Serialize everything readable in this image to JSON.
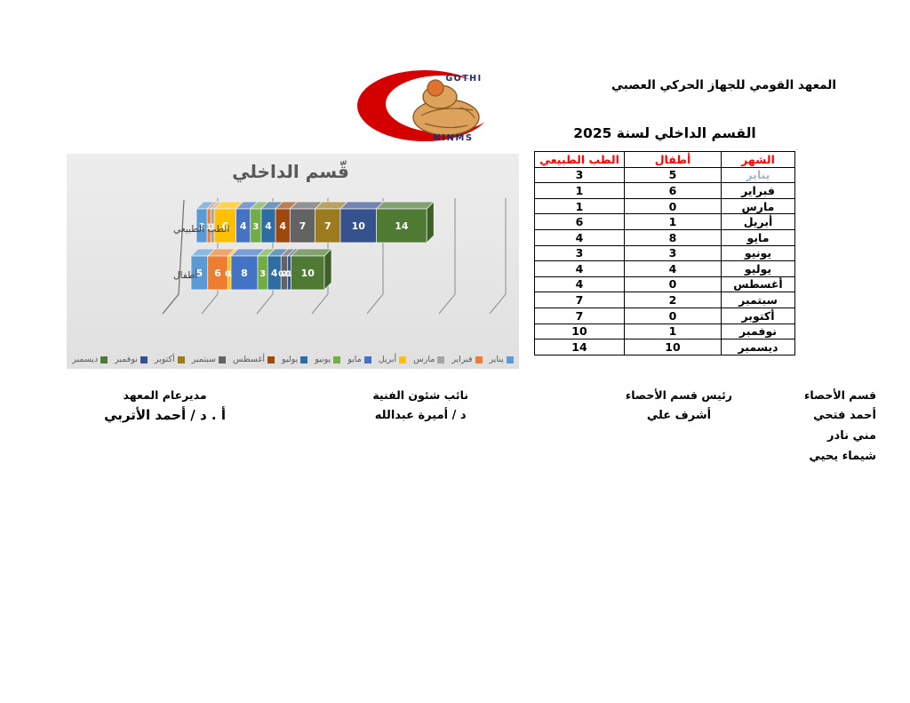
{
  "header": {
    "institute_title": "المعهد القومي للجهاز الحركي العصبي",
    "report_title": "القسم الداخلي لسنة 2025"
  },
  "logo": {
    "top_text": "GOTHI",
    "bottom_text": "NINMS",
    "crescent_color": "#D40000",
    "figure_color": "#DDA35C",
    "text_color": "#1E2D6B"
  },
  "table": {
    "columns": [
      "الشهر",
      "أطفال",
      "الطب الطبيعي"
    ],
    "header_text_color": "#FF0000",
    "rows": [
      {
        "month": "يناير",
        "children": 5,
        "physio": 3,
        "muted": true
      },
      {
        "month": "فبراير",
        "children": 6,
        "physio": 1,
        "muted": false
      },
      {
        "month": "مارس",
        "children": 0,
        "physio": 1,
        "muted": false
      },
      {
        "month": "أبريل",
        "children": 1,
        "physio": 6,
        "muted": false
      },
      {
        "month": "مايو",
        "children": 8,
        "physio": 4,
        "muted": false
      },
      {
        "month": "يونيو",
        "children": 3,
        "physio": 3,
        "muted": false
      },
      {
        "month": "يوليو",
        "children": 4,
        "physio": 4,
        "muted": false
      },
      {
        "month": "أغسطس",
        "children": 0,
        "physio": 4,
        "muted": false
      },
      {
        "month": "سبتمبر",
        "children": 2,
        "physio": 7,
        "muted": false
      },
      {
        "month": "أكتوبر",
        "children": 0,
        "physio": 7,
        "muted": false
      },
      {
        "month": "نوفمبر",
        "children": 1,
        "physio": 10,
        "muted": false
      },
      {
        "month": "ديسمبر",
        "children": 10,
        "physio": 14,
        "muted": false
      }
    ]
  },
  "chart_data": {
    "type": "bar",
    "subtype": "3d-stacked-horizontal",
    "title": "قّسم الداخلي",
    "title_color": "#595959",
    "categories": [
      "الطب الطبيعي",
      "أطفال"
    ],
    "values_order": "values = [الطب الطبيعي, أطفال]",
    "series": [
      {
        "name": "يناير",
        "color": "#5B9BD5",
        "values": [
          3,
          5
        ]
      },
      {
        "name": "فبراير",
        "color": "#ED7D31",
        "values": [
          1,
          6
        ]
      },
      {
        "name": "مارس",
        "color": "#A5A5A5",
        "values": [
          1,
          0
        ]
      },
      {
        "name": "أبريل",
        "color": "#FFC000",
        "values": [
          6,
          1
        ]
      },
      {
        "name": "مايو",
        "color": "#4472C4",
        "values": [
          4,
          8
        ]
      },
      {
        "name": "يونيو",
        "color": "#70AD47",
        "values": [
          3,
          3
        ]
      },
      {
        "name": "يوليو",
        "color": "#2E6DA4",
        "values": [
          4,
          4
        ]
      },
      {
        "name": "أغسطس",
        "color": "#9E480E",
        "values": [
          4,
          0
        ]
      },
      {
        "name": "سبتمبر",
        "color": "#636363",
        "values": [
          7,
          2
        ]
      },
      {
        "name": "أكتوبر",
        "color": "#9C7B1F",
        "values": [
          7,
          0
        ]
      },
      {
        "name": "نوفمبر",
        "color": "#35518E",
        "values": [
          10,
          1
        ]
      },
      {
        "name": "ديسمبر",
        "color": "#4E7A33",
        "values": [
          14,
          10
        ]
      }
    ],
    "legend_position": "bottom",
    "gridlines": true,
    "data_labels": "white bold numbers on segments"
  },
  "signatures": [
    {
      "title": "قسم الأحصاء",
      "names": [
        "أحمد فتحي",
        "مني نادر",
        "شيماء يحيي"
      ]
    },
    {
      "title": "رئيس قسم الأحصاء",
      "names": [
        "أشرف علي"
      ]
    },
    {
      "title": "نائب شئون الفنية",
      "names": [
        "د / أميرة عبدالله"
      ]
    },
    {
      "title": "مديرعام المعهد",
      "names": [
        "أ . د / أحمد الأتربي"
      ]
    }
  ]
}
